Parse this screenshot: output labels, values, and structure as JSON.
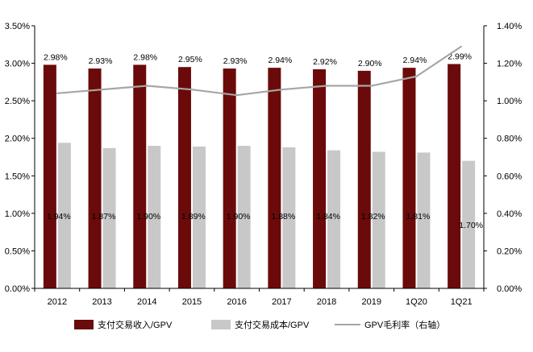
{
  "chart_data": {
    "type": "bar",
    "categories": [
      "2012",
      "2013",
      "2014",
      "2015",
      "2016",
      "2017",
      "2018",
      "2019",
      "1Q20",
      "1Q21"
    ],
    "series": [
      {
        "name": "支付交易收入/GPV",
        "kind": "bar",
        "axis": "left",
        "color": "#6b0a0a",
        "values": [
          2.98,
          2.93,
          2.98,
          2.95,
          2.93,
          2.94,
          2.92,
          2.9,
          2.94,
          2.99
        ],
        "labels": [
          "2.98%",
          "2.93%",
          "2.98%",
          "2.95%",
          "2.93%",
          "2.94%",
          "2.92%",
          "2.90%",
          "2.94%",
          "2.99%"
        ]
      },
      {
        "name": "支付交易成本/GPV",
        "kind": "bar",
        "axis": "left",
        "color": "#c8c8c8",
        "values": [
          1.94,
          1.87,
          1.9,
          1.89,
          1.9,
          1.88,
          1.84,
          1.82,
          1.81,
          1.7
        ],
        "labels": [
          "1.94%",
          "1.87%",
          "1.90%",
          "1.89%",
          "1.90%",
          "1.88%",
          "1.84%",
          "1.82%",
          "1.81%",
          "1.70%"
        ]
      },
      {
        "name": "GPV毛利率（右轴）",
        "kind": "line",
        "axis": "right",
        "color": "#a6a6a6",
        "values": [
          1.04,
          1.06,
          1.08,
          1.06,
          1.03,
          1.06,
          1.08,
          1.08,
          1.13,
          1.29
        ]
      }
    ],
    "y_left": {
      "ylim": [
        0,
        3.5
      ],
      "ticks": [
        "0.00%",
        "0.50%",
        "1.00%",
        "1.50%",
        "2.00%",
        "2.50%",
        "3.00%",
        "3.50%"
      ]
    },
    "y_right": {
      "ylim": [
        0,
        1.4
      ],
      "ticks": [
        "0.00%",
        "0.20%",
        "0.40%",
        "0.60%",
        "0.80%",
        "1.00%",
        "1.20%",
        "1.40%"
      ]
    },
    "title": "",
    "xlabel": "",
    "grid": false,
    "legend_position": "bottom"
  }
}
